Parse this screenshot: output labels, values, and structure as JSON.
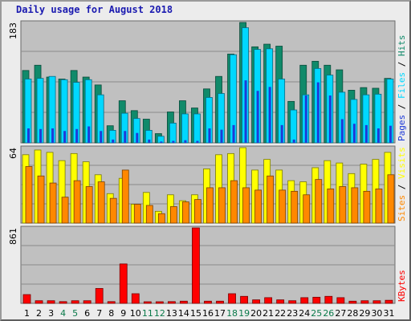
{
  "chart_data": {
    "type": "bar",
    "title": "Daily usage for August 2018",
    "categories": [
      "1",
      "2",
      "3",
      "4",
      "5",
      "6",
      "7",
      "8",
      "9",
      "10",
      "11",
      "12",
      "13",
      "14",
      "15",
      "16",
      "17",
      "18",
      "19",
      "20",
      "21",
      "22",
      "23",
      "24",
      "25",
      "26",
      "27",
      "28",
      "29",
      "30",
      "31"
    ],
    "weekend_days": [
      "4",
      "5",
      "11",
      "12",
      "18",
      "19",
      "25",
      "26"
    ],
    "colors": {
      "hits": "#108a6a",
      "files": "#00d8ff",
      "pages": "#1e3ad8",
      "visits": "#ffff00",
      "sites": "#ff8800",
      "kbytes": "#ff0000",
      "weekend_text": "#0a7a4a",
      "weekday_text": "#000000",
      "panel_bg": "#c0c0c0"
    },
    "panels": [
      {
        "ymax_label": "183",
        "ylim": [
          0,
          183
        ],
        "series_labels": [
          "Pages",
          "Files",
          "Hits"
        ],
        "series": [
          {
            "name": "Hits",
            "values": [
              110,
              118,
              100,
              97,
              110,
              100,
              88,
              26,
              64,
              49,
              36,
              14,
              47,
              64,
              53,
              82,
              101,
              135,
              183,
              146,
              150,
              147,
              63,
              118,
              124,
              118,
              111,
              80,
              84,
              83,
              98
            ]
          },
          {
            "name": "Files",
            "values": [
              97,
              98,
              101,
              96,
              92,
              96,
              73,
              19,
              45,
              37,
              19,
              10,
              30,
              44,
              44,
              69,
              75,
              134,
              175,
              142,
              143,
              97,
              50,
              73,
              113,
              103,
              77,
              66,
              73,
              74,
              97
            ]
          },
          {
            "name": "Pages",
            "values": [
              22,
              21,
              22,
              18,
              21,
              25,
              18,
              5,
              18,
              15,
              5,
              2,
              3,
              4,
              3,
              22,
              20,
              27,
              95,
              79,
              85,
              27,
              5,
              72,
              92,
              72,
              36,
              29,
              27,
              22,
              26
            ]
          }
        ]
      },
      {
        "ymax_label": "64",
        "ylim": [
          0,
          64
        ],
        "series_labels": [
          "Sites",
          "Visits"
        ],
        "series": [
          {
            "name": "Visits",
            "values": [
              58,
              62,
              60,
              53,
              59,
              52,
              41,
              25,
              38,
              16,
              26,
              10,
              24,
              19,
              24,
              46,
              58,
              59,
              64,
              45,
              54,
              45,
              36,
              35,
              47,
              53,
              51,
              42,
              50,
              54,
              60
            ]
          },
          {
            "name": "Sites",
            "values": [
              48,
              40,
              34,
              22,
              36,
              31,
              35,
              21,
              45,
              16,
              15,
              8,
              14,
              18,
              20,
              30,
              30,
              36,
              30,
              28,
              40,
              28,
              27,
              24,
              37,
              29,
              31,
              30,
              27,
              29,
              41
            ]
          }
        ]
      },
      {
        "ymax_label": "861",
        "ylim": [
          0,
          861
        ],
        "series_labels": [
          "KBytes"
        ],
        "series": [
          {
            "name": "KBytes",
            "values": [
              100,
              30,
              30,
              20,
              30,
              30,
              170,
              20,
              450,
              110,
              15,
              12,
              20,
              25,
              861,
              25,
              25,
              110,
              80,
              40,
              65,
              40,
              30,
              65,
              70,
              80,
              65,
              25,
              30,
              30,
              35
            ]
          }
        ]
      }
    ]
  }
}
